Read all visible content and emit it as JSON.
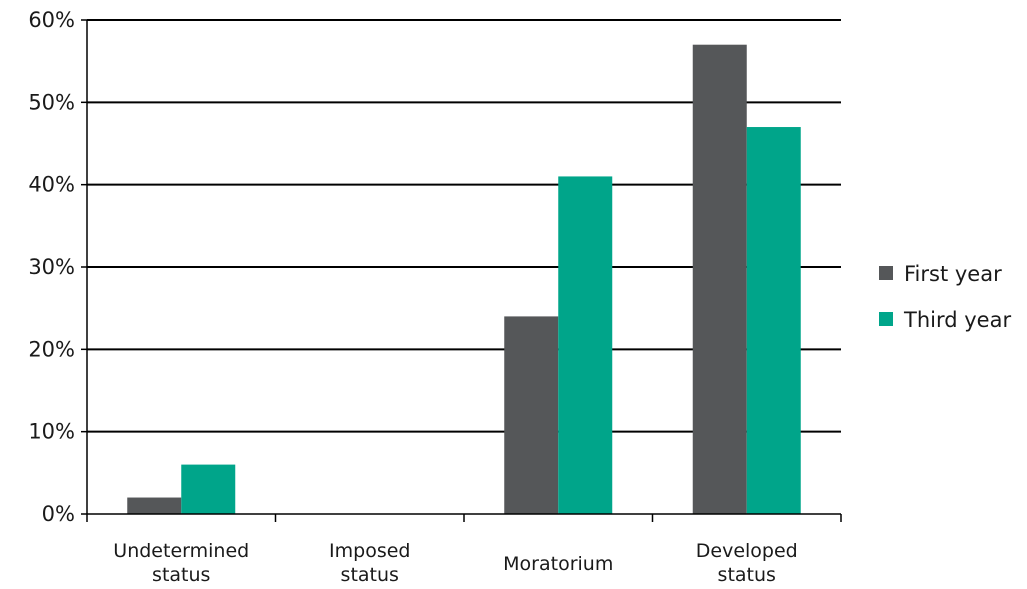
{
  "chart_data": {
    "type": "bar",
    "categories": [
      [
        "Undetermined",
        "status"
      ],
      [
        "Imposed",
        "status"
      ],
      [
        "Moratorium"
      ],
      [
        "Developed",
        "status"
      ]
    ],
    "series": [
      {
        "name": "First year",
        "color": "#555759",
        "values": [
          2,
          0,
          24,
          57
        ]
      },
      {
        "name": "Third year",
        "color": "#00a58a",
        "values": [
          6,
          0,
          41,
          47
        ]
      }
    ],
    "ylim": [
      0,
      60
    ],
    "yticks": [
      0,
      10,
      20,
      30,
      40,
      50,
      60
    ],
    "ytick_suffix": "%",
    "grid": true,
    "legend_position": "right",
    "title": "",
    "xlabel": "",
    "ylabel": ""
  }
}
